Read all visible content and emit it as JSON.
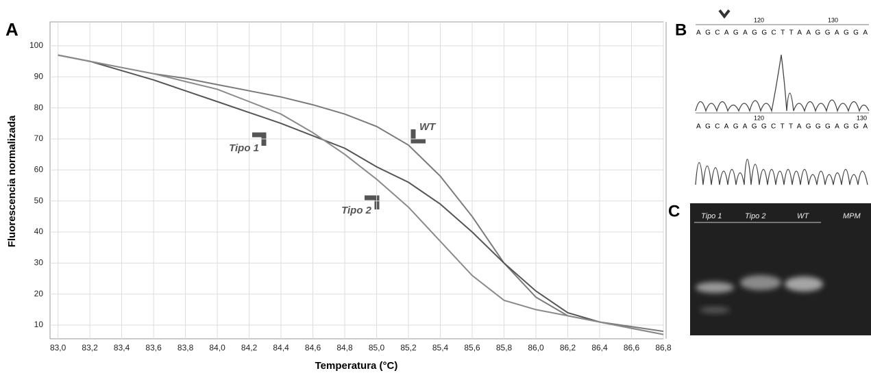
{
  "chart_data": {
    "type": "line",
    "panel_label": "A",
    "xlabel": "Temperatura (°C)",
    "ylabel": "Fluorescencia normalizada",
    "x": [
      83.0,
      83.2,
      83.4,
      83.6,
      83.8,
      84.0,
      84.2,
      84.4,
      84.6,
      84.8,
      85.0,
      85.2,
      85.4,
      85.6,
      85.8,
      86.0,
      86.2,
      86.4,
      86.6,
      86.8
    ],
    "series": [
      {
        "name": "WT",
        "color": "#7a7a7a",
        "values": [
          97,
          95,
          93,
          91,
          89.5,
          87.5,
          85.5,
          83.5,
          81,
          78,
          74,
          68,
          58,
          45,
          30,
          19,
          13,
          11,
          9.5,
          8
        ]
      },
      {
        "name": "Tipo 1",
        "color": "#555555",
        "values": [
          97,
          95,
          92,
          89,
          85.5,
          82,
          78.5,
          75,
          71,
          67,
          61,
          56,
          49,
          40,
          30,
          21,
          14,
          11,
          9,
          7
        ]
      },
      {
        "name": "Tipo 2",
        "color": "#8a8a8a",
        "values": [
          97,
          95,
          93,
          91,
          88.5,
          86,
          82,
          78,
          72,
          65,
          57,
          48,
          37,
          26,
          18,
          15,
          13,
          11,
          9,
          7
        ]
      }
    ],
    "xlim": [
      82.95,
      86.8
    ],
    "ylim": [
      5.6,
      107.7
    ],
    "xticks": [
      {
        "value": 83.0,
        "label": "83,0"
      },
      {
        "value": 83.2,
        "label": "83,2"
      },
      {
        "value": 83.4,
        "label": "83,4"
      },
      {
        "value": 83.6,
        "label": "83,6"
      },
      {
        "value": 83.8,
        "label": "83,8"
      },
      {
        "value": 84.0,
        "label": "84,0"
      },
      {
        "value": 84.2,
        "label": "84,2"
      },
      {
        "value": 84.4,
        "label": "84,4"
      },
      {
        "value": 84.6,
        "label": "84,6"
      },
      {
        "value": 84.8,
        "label": "84,8"
      },
      {
        "value": 85.0,
        "label": "85,0"
      },
      {
        "value": 85.2,
        "label": "85,2"
      },
      {
        "value": 85.4,
        "label": "85,4"
      },
      {
        "value": 85.6,
        "label": "85,6"
      },
      {
        "value": 85.8,
        "label": "85,8"
      },
      {
        "value": 86.0,
        "label": "86,0"
      },
      {
        "value": 86.2,
        "label": "86,2"
      },
      {
        "value": 86.4,
        "label": "86,4"
      },
      {
        "value": 86.6,
        "label": "86,6"
      },
      {
        "value": 86.8,
        "label": "86,8"
      }
    ],
    "yticks": [
      10,
      20,
      30,
      40,
      50,
      60,
      70,
      80,
      90,
      100
    ],
    "grid": true
  },
  "sequence_panel": {
    "label": "B",
    "positions": [
      "120",
      "130",
      "120",
      "130"
    ],
    "sequences": [
      "AGCAGAGGCTTAAGGAGGA",
      "AGCAGAGGCTTAGGGAGGA"
    ]
  },
  "gel_panel": {
    "label": "C",
    "lanes": [
      "Tipo 1",
      "Tipo 2",
      "WT",
      "MPM"
    ]
  }
}
